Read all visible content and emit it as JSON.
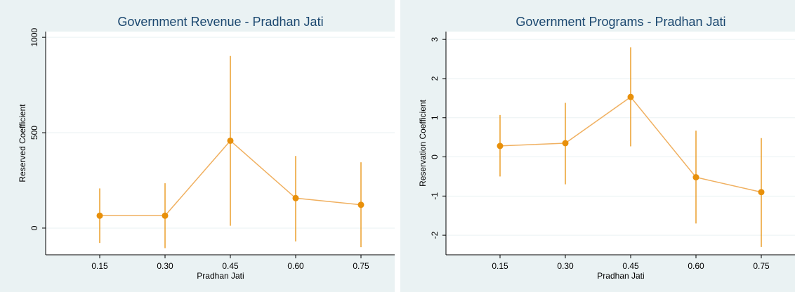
{
  "chart_data": [
    {
      "type": "line",
      "title": "Government Revenue - Pradhan Jati",
      "xlabel": "Pradhan Jati",
      "ylabel": "Reserved Coefficient",
      "categories": [
        "0.15",
        "0.30",
        "0.45",
        "0.60",
        "0.75"
      ],
      "y_ticks": [
        0,
        500,
        1000
      ],
      "ylim": [
        -140,
        1030
      ],
      "series": [
        {
          "values": [
            65,
            65,
            458,
            157,
            122
          ],
          "lower": [
            -78,
            -105,
            12,
            -70,
            -100
          ],
          "upper": [
            208,
            235,
            902,
            378,
            345
          ]
        }
      ],
      "colors": {
        "series": "#e8900a",
        "line": "#f0b060",
        "gridline": "#eaf2f3",
        "title": "#1a476f"
      },
      "grid": true
    },
    {
      "type": "line",
      "title": "Government Programs - Pradhan Jati",
      "xlabel": "Pradhan Jati",
      "ylabel": "Reservation Coefficient",
      "categories": [
        "0.15",
        "0.30",
        "0.45",
        "0.60",
        "0.75"
      ],
      "y_ticks": [
        -2,
        -1,
        0,
        1,
        2,
        3
      ],
      "ylim": [
        -2.5,
        3.2
      ],
      "series": [
        {
          "values": [
            0.28,
            0.35,
            1.53,
            -0.52,
            -0.9
          ],
          "lower": [
            -0.5,
            -0.7,
            0.27,
            -1.7,
            -2.3
          ],
          "upper": [
            1.07,
            1.38,
            2.8,
            0.67,
            0.48
          ]
        }
      ],
      "colors": {
        "series": "#e8900a",
        "line": "#f0b060",
        "gridline": "#eaf2f3",
        "title": "#1a476f"
      },
      "grid": true
    }
  ]
}
